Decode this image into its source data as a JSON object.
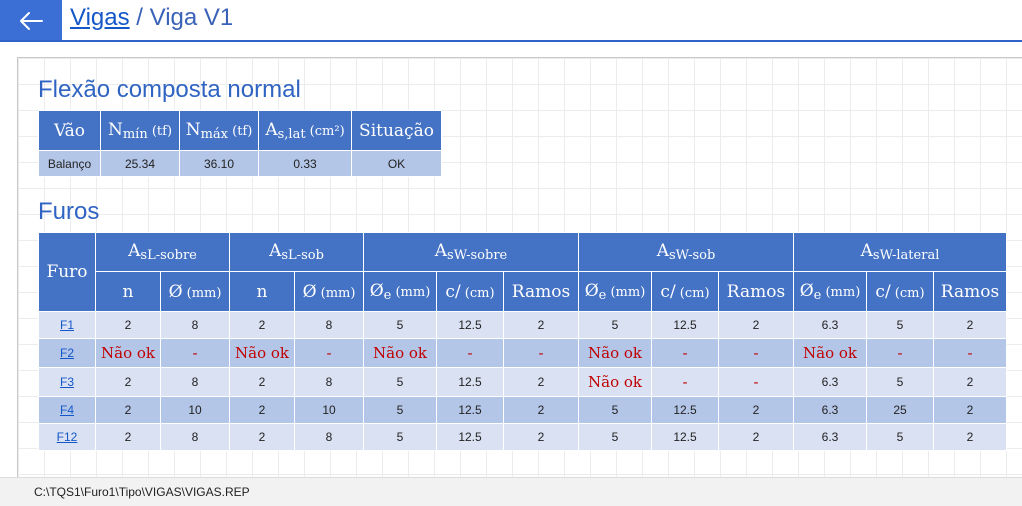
{
  "header": {
    "title_link": "Vigas",
    "title_separator": " / ",
    "title_current": "Viga V1"
  },
  "flexao": {
    "title": "Flexão composta normal",
    "columns": {
      "vao": "Vão",
      "nmin_base": "N",
      "nmin_sub": "mín",
      "nmin_unit": " (tf)",
      "nmax_base": "N",
      "nmax_sub": "máx",
      "nmax_unit": " (tf)",
      "aslat_base": "A",
      "aslat_sub": "s,lat",
      "aslat_unit": " (cm²)",
      "situacao": "Situação"
    },
    "rows": [
      {
        "vao": "Balanço",
        "nmin": "25.34",
        "nmax": "36.10",
        "aslat": "0.33",
        "situacao": "OK"
      }
    ]
  },
  "furos": {
    "title": "Furos",
    "columns": {
      "furo": "Furo",
      "group_base": "A",
      "groups": [
        "sL-sobre",
        "sL-sob",
        "sW-sobre",
        "sW-sob",
        "sW-lateral"
      ],
      "n": "n",
      "diam": "Ø",
      "diam_e": "Ø",
      "diam_e_sub": "e",
      "unit_mm": " (mm)",
      "c": "c/",
      "unit_cm": " (cm)",
      "ramos": "Ramos"
    },
    "rows": [
      {
        "furo": "F1",
        "cells": [
          "2",
          "8",
          "2",
          "8",
          "5",
          "12.5",
          "2",
          "5",
          "12.5",
          "2",
          "6.3",
          "5",
          "2"
        ]
      },
      {
        "furo": "F2",
        "cells": [
          "Não ok",
          "-",
          "Não ok",
          "-",
          "Não ok",
          "-",
          "-",
          "Não ok",
          "-",
          "-",
          "Não ok",
          "-",
          "-"
        ]
      },
      {
        "furo": "F3",
        "cells": [
          "2",
          "8",
          "2",
          "8",
          "5",
          "12.5",
          "2",
          "Não ok",
          "-",
          "-",
          "6.3",
          "5",
          "2"
        ]
      },
      {
        "furo": "F4",
        "cells": [
          "2",
          "10",
          "2",
          "10",
          "5",
          "12.5",
          "2",
          "5",
          "12.5",
          "2",
          "6.3",
          "25",
          "2"
        ]
      },
      {
        "furo": "F12",
        "cells": [
          "2",
          "8",
          "2",
          "8",
          "5",
          "12.5",
          "2",
          "5",
          "12.5",
          "2",
          "6.3",
          "5",
          "2"
        ]
      }
    ]
  },
  "status": {
    "path": "C:\\TQS1\\Furo1\\Tipo\\VIGAS\\VIGAS.REP"
  }
}
